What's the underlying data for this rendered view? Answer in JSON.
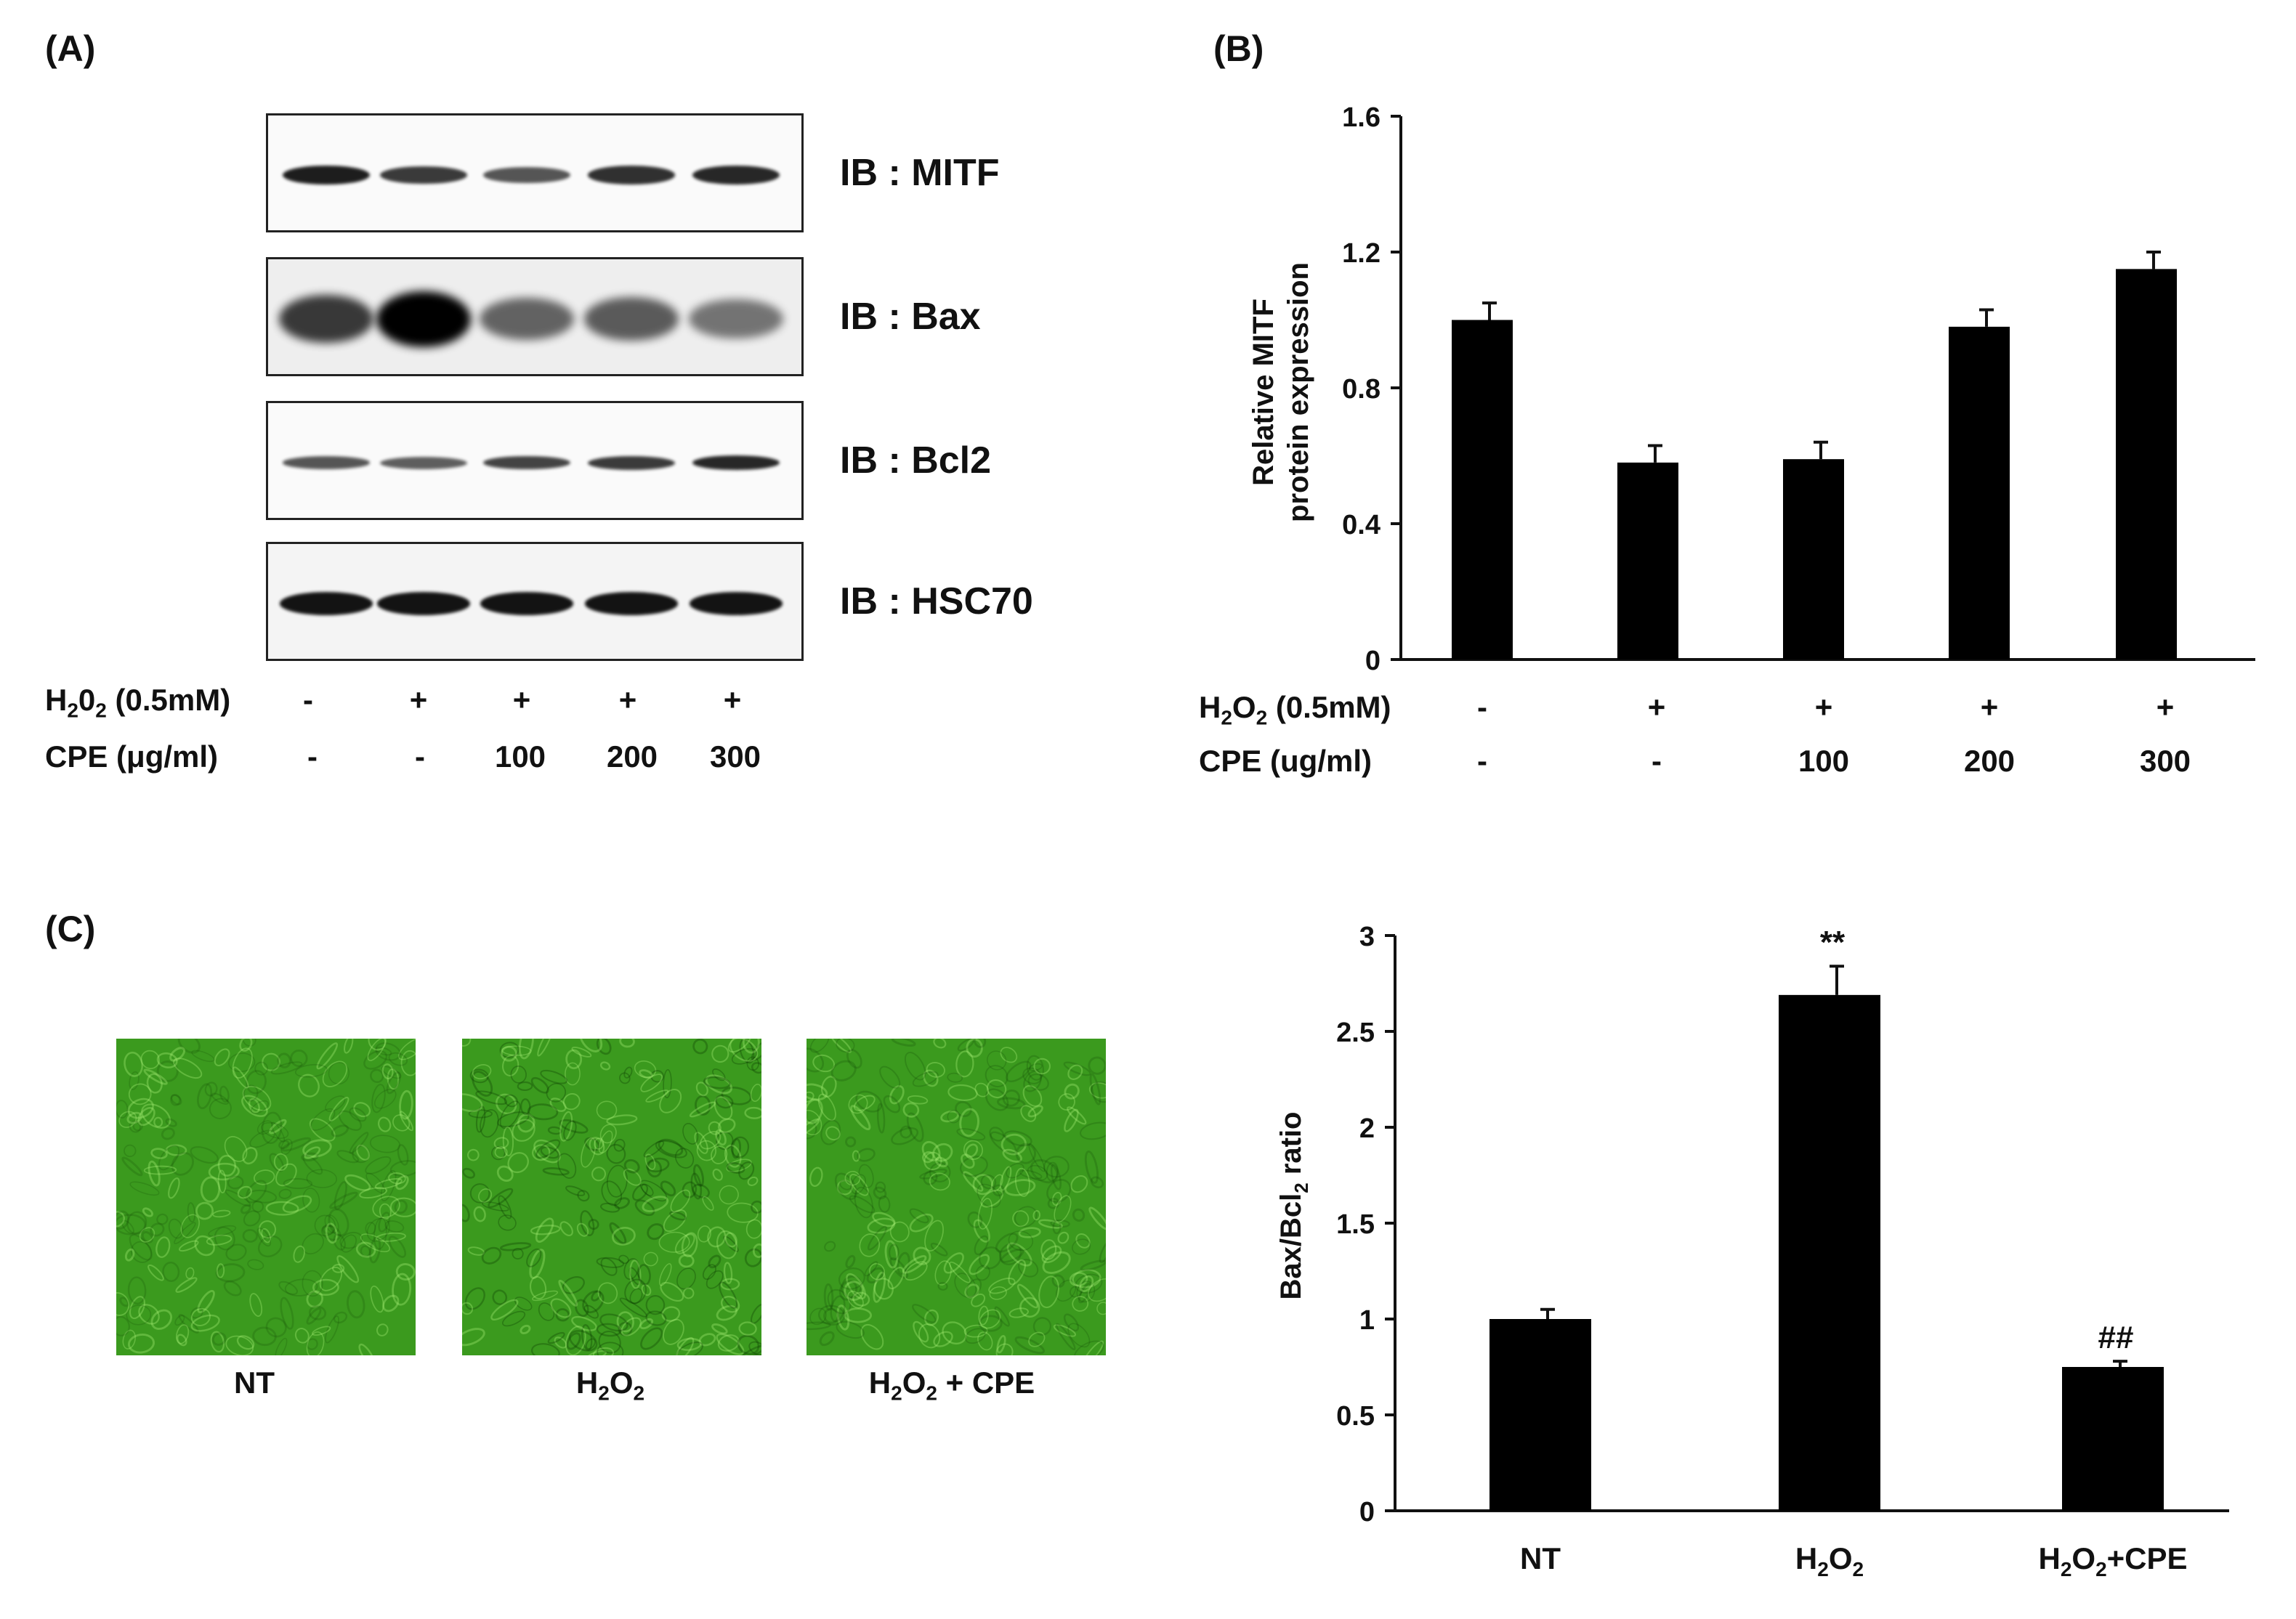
{
  "panels": {
    "a": "(A)",
    "b": "(B)",
    "c": "(C)"
  },
  "blots": [
    {
      "label": "IB : MITF",
      "intensity": [
        0.85,
        0.7,
        0.55,
        0.75,
        0.8
      ]
    },
    {
      "label": "IB : Bax",
      "intensity": [
        0.7,
        1.0,
        0.45,
        0.5,
        0.35
      ]
    },
    {
      "label": "IB : Bcl2",
      "intensity": [
        0.55,
        0.5,
        0.65,
        0.7,
        0.8
      ]
    },
    {
      "label": "IB : HSC70",
      "intensity": [
        0.9,
        0.9,
        0.9,
        0.9,
        0.9
      ]
    }
  ],
  "conditions_a": {
    "h2o2": {
      "main": "H",
      "sub1": "2",
      "mid": "0",
      "sub2": "2",
      "tail": " (0.5mM)"
    },
    "h2o2_values": [
      "-",
      "+",
      "+",
      "+",
      "+"
    ],
    "cpe": {
      "label": "CPE (μg/ml)"
    },
    "cpe_values": [
      "-",
      "-",
      "100",
      "200",
      "300"
    ]
  },
  "conditions_b": {
    "h2o2": {
      "main": "H",
      "sub1": "2",
      "mid": "O",
      "sub2": "2",
      "tail": " (0.5mM)"
    },
    "h2o2_values": [
      "-",
      "+",
      "+",
      "+",
      "+"
    ],
    "cpe": {
      "label": "CPE (ug/ml)"
    },
    "cpe_values": [
      "-",
      "-",
      "100",
      "200",
      "300"
    ]
  },
  "micrographs": {
    "labels": {
      "nt": "NT",
      "h2o2": {
        "main": "H",
        "sub1": "2",
        "mid": "O",
        "sub2": "2",
        "tail": ""
      },
      "h2o2_cpe": {
        "main": "H",
        "sub1": "2",
        "mid": "O",
        "sub2": "2",
        "tail": " + CPE"
      }
    },
    "color": "#3b9a1e"
  },
  "chart_data": [
    {
      "type": "bar",
      "ylabel_lines": [
        "Relative MITF",
        "protein expression"
      ],
      "ylim": [
        0,
        1.6
      ],
      "yticks": [
        "0",
        "0.4",
        "0.8",
        "1.2",
        "1.6"
      ],
      "values": [
        1.0,
        0.58,
        0.59,
        0.98,
        1.15
      ],
      "errors": [
        0.05,
        0.05,
        0.05,
        0.05,
        0.05
      ],
      "bar_color": "#000000"
    },
    {
      "type": "bar",
      "ylabel": {
        "main": "Bax/Bcl",
        "sub": "2",
        "tail": " ratio"
      },
      "ylim": [
        0,
        3
      ],
      "yticks": [
        "0",
        "0.5",
        "1",
        "1.5",
        "2",
        "2.5",
        "3"
      ],
      "categories": [
        "NT",
        "H2O2",
        "H2O2+CPE"
      ],
      "category_labels": [
        {
          "main": "NT",
          "sub1": "",
          "mid": "",
          "sub2": "",
          "tail": ""
        },
        {
          "main": "H",
          "sub1": "2",
          "mid": "O",
          "sub2": "2",
          "tail": ""
        },
        {
          "main": "H",
          "sub1": "2",
          "mid": "O",
          "sub2": "2",
          "tail": "+CPE"
        }
      ],
      "values": [
        1.0,
        2.69,
        0.75
      ],
      "errors": [
        0.05,
        0.15,
        0.03
      ],
      "annotations": [
        "",
        "**",
        "##"
      ],
      "bar_color": "#000000"
    }
  ]
}
